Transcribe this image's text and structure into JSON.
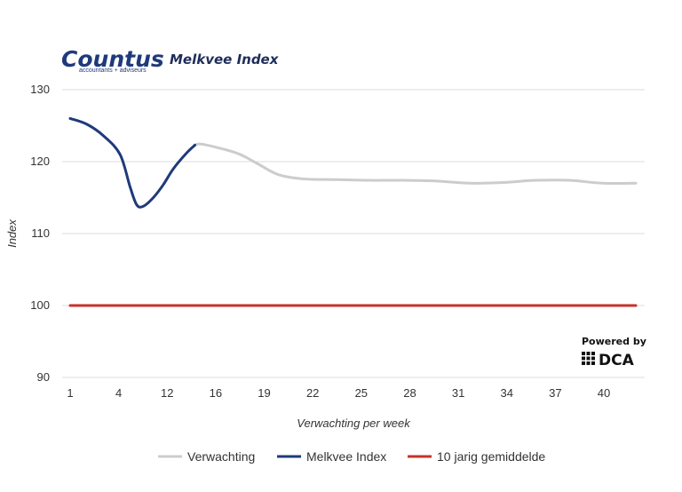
{
  "header": {
    "logo_name": "Countus",
    "logo_tagline": "accountants + adviseurs"
  },
  "badge": {
    "powered_by": "Powered by",
    "brand": "DCA"
  },
  "colors": {
    "forecast": "#cccccc",
    "index": "#1f3a7a",
    "average": "#c8312b",
    "grid": "#dddddd"
  },
  "chart_data": {
    "type": "line",
    "title": "Melkvee Index",
    "xlabel": "Verwachting per week",
    "ylabel": "Index",
    "xlim": [
      1,
      42
    ],
    "ylim": [
      90,
      130
    ],
    "x_ticks": [
      "1",
      "4",
      "12",
      "16",
      "19",
      "22",
      "25",
      "28",
      "31",
      "34",
      "37",
      "40"
    ],
    "y_ticks": [
      90,
      100,
      110,
      120,
      130
    ],
    "grid": true,
    "legend_position": "bottom",
    "series": [
      {
        "name": "Verwachting",
        "color": "#cccccc",
        "points": [
          [
            8.5,
            122.3
          ],
          [
            9,
            122.4
          ],
          [
            11,
            121.2
          ],
          [
            12.2,
            119.8
          ],
          [
            13.5,
            118.2
          ],
          [
            15,
            117.6
          ],
          [
            17,
            117.5
          ],
          [
            19,
            117.4
          ],
          [
            21,
            117.4
          ],
          [
            23,
            117.3
          ],
          [
            25,
            117.0
          ],
          [
            27,
            117.1
          ],
          [
            29,
            117.4
          ],
          [
            31,
            117.4
          ],
          [
            33,
            117.0
          ],
          [
            35,
            117.0
          ]
        ]
      },
      {
        "name": "Melkvee Index",
        "color": "#1f3a7a",
        "points": [
          [
            1,
            126.0
          ],
          [
            2,
            125.2
          ],
          [
            3,
            123.6
          ],
          [
            4,
            121.0
          ],
          [
            4.6,
            116.5
          ],
          [
            5,
            114.0
          ],
          [
            5.4,
            113.8
          ],
          [
            6,
            115.0
          ],
          [
            6.6,
            116.8
          ],
          [
            7.2,
            119.0
          ],
          [
            8,
            121.2
          ],
          [
            8.5,
            122.3
          ]
        ]
      },
      {
        "name": "10 jarig gemiddelde",
        "color": "#c8312b",
        "points": [
          [
            1,
            100
          ],
          [
            35,
            100
          ]
        ]
      }
    ]
  }
}
